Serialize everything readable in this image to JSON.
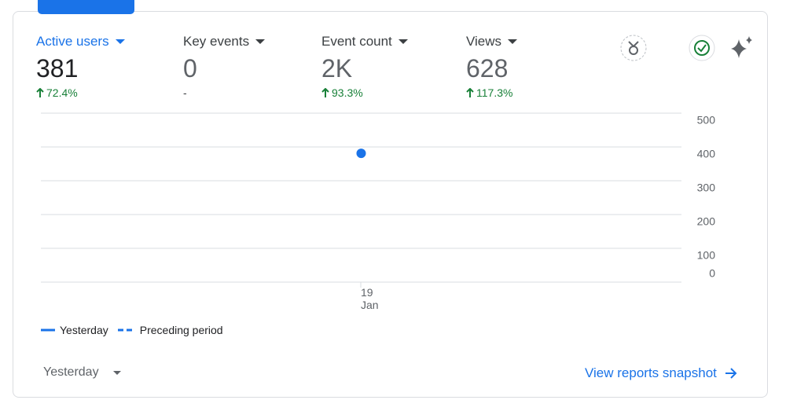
{
  "metrics": [
    {
      "label": "Active users",
      "value": 381,
      "change": "72.4%"
    },
    {
      "label": "Key events",
      "value": 0,
      "change": "-"
    },
    {
      "label": "Event count",
      "value": "2K",
      "change": "93.3%"
    },
    {
      "label": "Views",
      "value": 628,
      "change": "117.3%"
    }
  ],
  "chart_data": {
    "type": "scatter",
    "categories": [
      "19 Jan"
    ],
    "series": [
      {
        "name": "Yesterday",
        "color": "#1a73e8",
        "values": [
          381
        ]
      },
      {
        "name": "Preceding period",
        "color": "#1a73e8",
        "values": [
          null
        ]
      }
    ],
    "ylim": [
      0,
      500
    ],
    "yticks": [
      0,
      100,
      200,
      300,
      400,
      500
    ],
    "grid": true
  },
  "footer": {
    "period": "Yesterday",
    "link": "View reports snapshot"
  }
}
